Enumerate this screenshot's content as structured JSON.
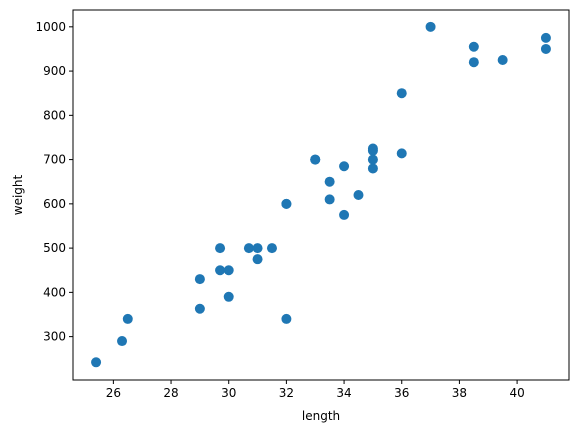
{
  "chart_data": {
    "type": "scatter",
    "title": "",
    "xlabel": "length",
    "ylabel": "weight",
    "xlim": [
      24.6,
      41.8
    ],
    "ylim": [
      202,
      1038
    ],
    "xticks": [
      26,
      28,
      30,
      32,
      34,
      36,
      38,
      40
    ],
    "yticks": [
      300,
      400,
      500,
      600,
      700,
      800,
      900,
      1000
    ],
    "grid": false,
    "marker_color": "#1f77b4",
    "series": [
      {
        "points": [
          [
            25.4,
            242
          ],
          [
            26.3,
            290
          ],
          [
            26.5,
            340
          ],
          [
            29.0,
            363
          ],
          [
            29.0,
            430
          ],
          [
            29.7,
            450
          ],
          [
            29.7,
            500
          ],
          [
            30.0,
            390
          ],
          [
            30.0,
            450
          ],
          [
            30.7,
            500
          ],
          [
            31.0,
            475
          ],
          [
            31.0,
            500
          ],
          [
            31.5,
            500
          ],
          [
            32.0,
            340
          ],
          [
            32.0,
            600
          ],
          [
            32.0,
            600
          ],
          [
            33.0,
            700
          ],
          [
            33.0,
            700
          ],
          [
            33.5,
            610
          ],
          [
            33.5,
            650
          ],
          [
            34.0,
            575
          ],
          [
            34.0,
            685
          ],
          [
            34.5,
            620
          ],
          [
            35.0,
            680
          ],
          [
            35.0,
            700
          ],
          [
            35.0,
            725
          ],
          [
            35.0,
            720
          ],
          [
            36.0,
            714
          ],
          [
            36.0,
            850
          ],
          [
            37.0,
            1000
          ],
          [
            38.5,
            920
          ],
          [
            38.5,
            955
          ],
          [
            39.5,
            925
          ],
          [
            41.0,
            975
          ],
          [
            41.0,
            950
          ]
        ]
      }
    ]
  }
}
